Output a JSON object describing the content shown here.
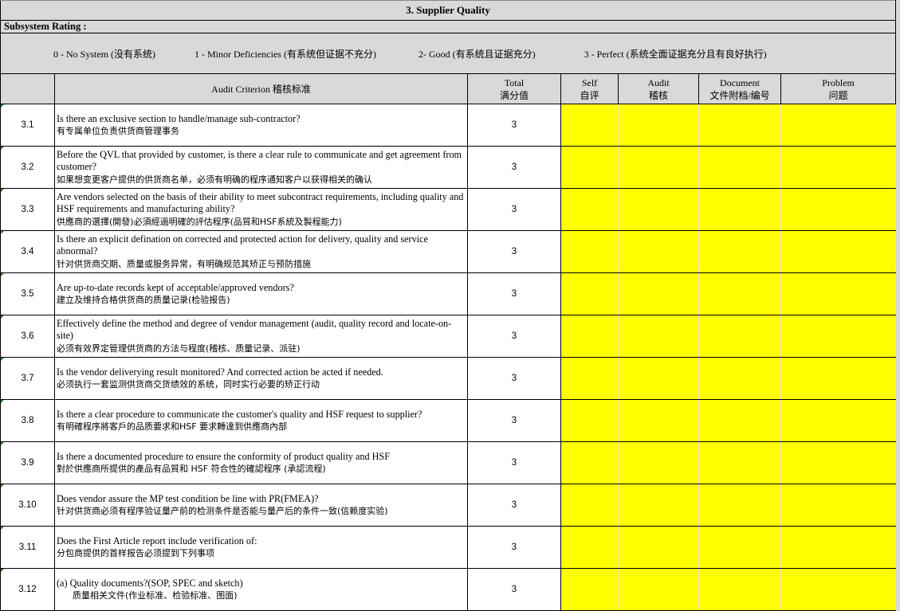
{
  "title": "3. Supplier Quality",
  "subsystem_label": "Subsystem Rating :",
  "ratings": [
    "0 -  No System (没有系统)",
    "1 -  Minor Deficiencies  (有系统但证据不充分)",
    "2-  Good (有系统且证据充分)",
    "3  -  Perfect (系统全面证据充分且有良好执行)"
  ],
  "headers": {
    "criterion": "Audit Criterion 稽核标准",
    "total_en": "Total",
    "total_cn": "满分值",
    "self_en": "Self",
    "self_cn": "自评",
    "audit_en": "Audit",
    "audit_cn": "稽核",
    "document_en": "Document",
    "document_cn": "文件附档/编号",
    "problem_en": "Problem",
    "problem_cn": "问题"
  },
  "colors": {
    "input_cell": "#ffff00",
    "header_bg": "#d9d9d9",
    "comment_marker": "#2e7d32"
  },
  "rows": [
    {
      "num": "3.1",
      "en": "Is there an exclusive section to handle/manage sub-contractor?",
      "cn": "有专属单位负责供货商管理事务",
      "total": "3"
    },
    {
      "num": "3.2",
      "en": "Before the QVL that provided by customer, is there a clear rule to communicate and get agreement from customer?",
      "cn": "如果想变更客户提供的供货商名单，必须有明确的程序通知客户以获得相关的确认",
      "total": "3"
    },
    {
      "num": "3.3",
      "en": "Are vendors selected on the basis of their ability to meet subcontract requirements, including quality and HSF requirements and manufacturing ability?",
      "cn": "供應商的選擇(開發)必須經過明確的評估程序(品質和HSF系統及製程能力)",
      "total": "3"
    },
    {
      "num": "3.4",
      "en": "Is there an explicit defination on corrected and protected action for delivery, quality and service abnormal?",
      "cn": "针对供货商交期、质量或服务异常，有明确规范其矫正与预防措施",
      "total": "3"
    },
    {
      "num": "3.5",
      "en": "Are up-to-date records kept of acceptable/approved vendors?",
      "cn": "建立及维持合格供货商的质量记录(检验报告)",
      "total": "3"
    },
    {
      "num": "3.6",
      "en": "Effectively define the method and degree of vendor management (audit, quality record and locate-on-site)",
      "cn": "必须有效界定管理供货商的方法与程度(稽核、质量记录、派驻)",
      "total": "3"
    },
    {
      "num": "3.7",
      "en": "Is the vendor deliverying result monitored? And corrected action be acted if needed.",
      "cn": "必须执行一套监测供货商交货绩效的系统，同时实行必要的矫正行动",
      "total": "3"
    },
    {
      "num": "3.8",
      "en": "Is there a clear procedure to communicate the customer's quality and HSF request to supplier?",
      "cn": "有明確程序將客戶的品质要求和HSF 要求轉達到供應商內部",
      "total": "3"
    },
    {
      "num": "3.9",
      "en": "Is there a documented procedure to ensure the conformity of product quality and HSF",
      "cn": "對於供應商所提供的產品有品質和 HSF 符合性的確認程序 (承認流程)",
      "total": "3"
    },
    {
      "num": "3.10",
      "en": "Does vendor assure the MP test condition be line with PR(FMEA)?",
      "cn": "针对供货商必须有程序验证量产前的检测条件是否能与量产后的条件一致(信赖度实验)",
      "total": "3"
    },
    {
      "num": "3.11",
      "en": "Does the First Article report include verification of:",
      "cn": "分包商提供的首样报告必须提到下列事项",
      "total": "3"
    },
    {
      "num": "3.12",
      "en": "(a) Quality documents?(SOP, SPEC and sketch)",
      "cn": "质量相关文件(作业标准、检验标准、图面)",
      "total": "3",
      "indent_cn": true
    }
  ]
}
